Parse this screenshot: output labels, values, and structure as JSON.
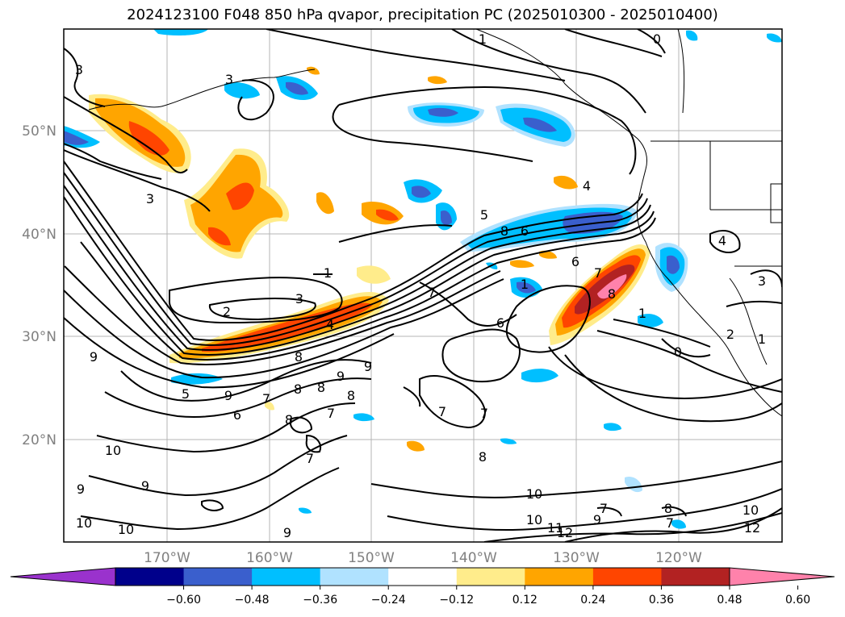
{
  "title": "2024123100 F048 850 hPa qvapor, precipitation PC (2025010300 - 2025010400)",
  "axes": {
    "lat_ticks": [
      "20°N",
      "30°N",
      "40°N",
      "50°N"
    ],
    "lon_ticks": [
      "170°W",
      "160°W",
      "150°W",
      "140°W",
      "130°W",
      "120°W"
    ]
  },
  "colorbar": {
    "colors": [
      "#9a32cd",
      "#00008b",
      "#3a5fcd",
      "#00bfff",
      "#b0e2ff",
      "#ffffff",
      "#ffec8b",
      "#ffa500",
      "#ff4500",
      "#b22222",
      "#ff82ab"
    ],
    "tick_labels": [
      "−0.60",
      "−0.48",
      "−0.36",
      "−0.24",
      "−0.12",
      "0.12",
      "0.24",
      "0.36",
      "0.48",
      "0.60"
    ]
  },
  "contour_labels": [
    "1",
    "0",
    "3",
    "3",
    "3",
    "4",
    "5",
    "8",
    "6",
    "6",
    "1",
    "2",
    "3",
    "4",
    "1",
    "7",
    "9",
    "8",
    "9",
    "9",
    "6",
    "5",
    "8",
    "9",
    "7",
    "8",
    "7",
    "8",
    "8",
    "7",
    "6",
    "7",
    "7",
    "10",
    "9",
    "9",
    "10",
    "10",
    "9",
    "8",
    "10",
    "10",
    "11",
    "12",
    "9",
    "7",
    "8",
    "7",
    "10",
    "12",
    "1",
    "0",
    "4",
    "3",
    "2",
    "1",
    "7",
    "8"
  ]
}
